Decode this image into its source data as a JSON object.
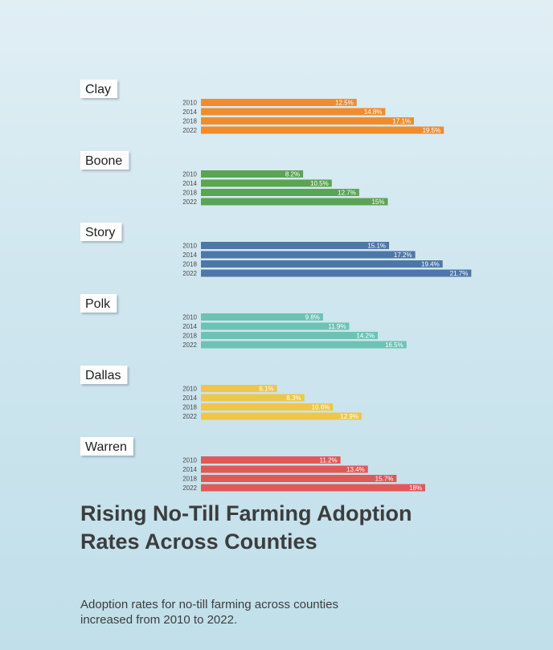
{
  "chart_data": {
    "type": "bar",
    "orientation": "horizontal",
    "title": "Rising No-Till Farming Adoption Rates Across Counties",
    "subtitle": "Adoption rates for no-till farming across counties increased from 2010 to 2022.",
    "years": [
      "2010",
      "2014",
      "2018",
      "2022"
    ],
    "value_suffix": "%",
    "xlim": [
      0,
      25
    ],
    "grid": false,
    "legend": "none",
    "groups": [
      {
        "county": "Clay",
        "color": "#ef8d2e",
        "values": [
          12.5,
          14.8,
          17.1,
          19.5
        ]
      },
      {
        "county": "Boone",
        "color": "#5ba453",
        "values": [
          8.2,
          10.5,
          12.7,
          15
        ]
      },
      {
        "county": "Story",
        "color": "#4d77a7",
        "values": [
          15.1,
          17.2,
          19.4,
          21.7
        ]
      },
      {
        "county": "Polk",
        "color": "#6cc3b4",
        "values": [
          9.8,
          11.9,
          14.2,
          16.5
        ]
      },
      {
        "county": "Dallas",
        "color": "#eec746",
        "values": [
          6.1,
          8.3,
          10.6,
          12.9
        ]
      },
      {
        "county": "Warren",
        "color": "#e25857",
        "values": [
          11.2,
          13.4,
          15.7,
          18
        ]
      }
    ]
  }
}
